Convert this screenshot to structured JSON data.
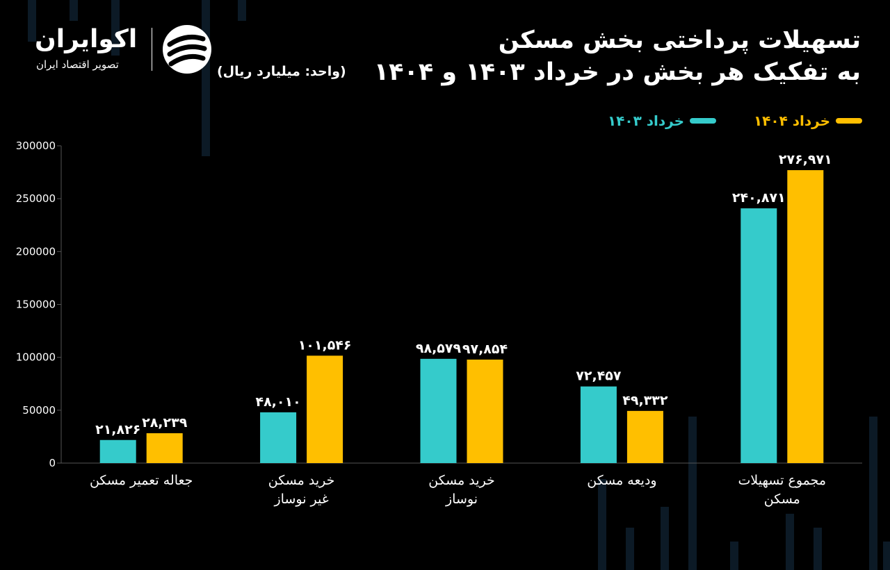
{
  "brand": {
    "name": "اکوایران",
    "tagline": "تصویر اقتصاد ایران"
  },
  "title_line1": "تسهیلات پرداختی بخش مسکن",
  "title_line2": "به تفکیک هر بخش در خرداد ۱۴۰۳ و ۱۴۰۴",
  "unit_label": "(واحد: میلیارد ریال)",
  "colors": {
    "series_1403": "#35CBCB",
    "series_1404": "#FFBF00",
    "background": "#000000",
    "axis": "#555555",
    "text": "#FFFFFF"
  },
  "chart_data": {
    "type": "bar",
    "title": "تسهیلات پرداختی بخش مسکن به تفکیک هر بخش در خرداد ۱۴۰۳ و ۱۴۰۴",
    "ylabel": "",
    "xlabel": "",
    "ylim": [
      0,
      300000
    ],
    "yticks": [
      0,
      50000,
      100000,
      150000,
      200000,
      250000,
      300000
    ],
    "ytick_labels": [
      "0",
      "50000",
      "100000",
      "150000",
      "200000",
      "250000",
      "300000"
    ],
    "grid": false,
    "legend": "top-right",
    "categories": [
      [
        "جعاله تعمیر مسکن"
      ],
      [
        "خرید مسکن",
        "غیر نوساز"
      ],
      [
        "خرید مسکن",
        "نوساز"
      ],
      [
        "ودیعه مسکن"
      ],
      [
        "مجموع تسهیلات",
        "مسکن"
      ]
    ],
    "series": [
      {
        "name": "خرداد ۱۴۰۳",
        "color": "#35CBCB",
        "values": [
          21826,
          48010,
          98579,
          72457,
          240871
        ],
        "labels": [
          "۲۱,۸۲۶",
          "۴۸,۰۱۰",
          "۹۸,۵۷۹",
          "۷۲,۴۵۷",
          "۲۴۰,۸۷۱"
        ]
      },
      {
        "name": "خرداد ۱۴۰۴",
        "color": "#FFBF00",
        "values": [
          28239,
          101546,
          97854,
          49332,
          276971
        ],
        "labels": [
          "۲۸,۲۳۹",
          "۱۰۱,۵۴۶",
          "۹۷,۸۵۴",
          "۴۹,۳۳۲",
          "۲۷۶,۹۷۱"
        ]
      }
    ]
  }
}
